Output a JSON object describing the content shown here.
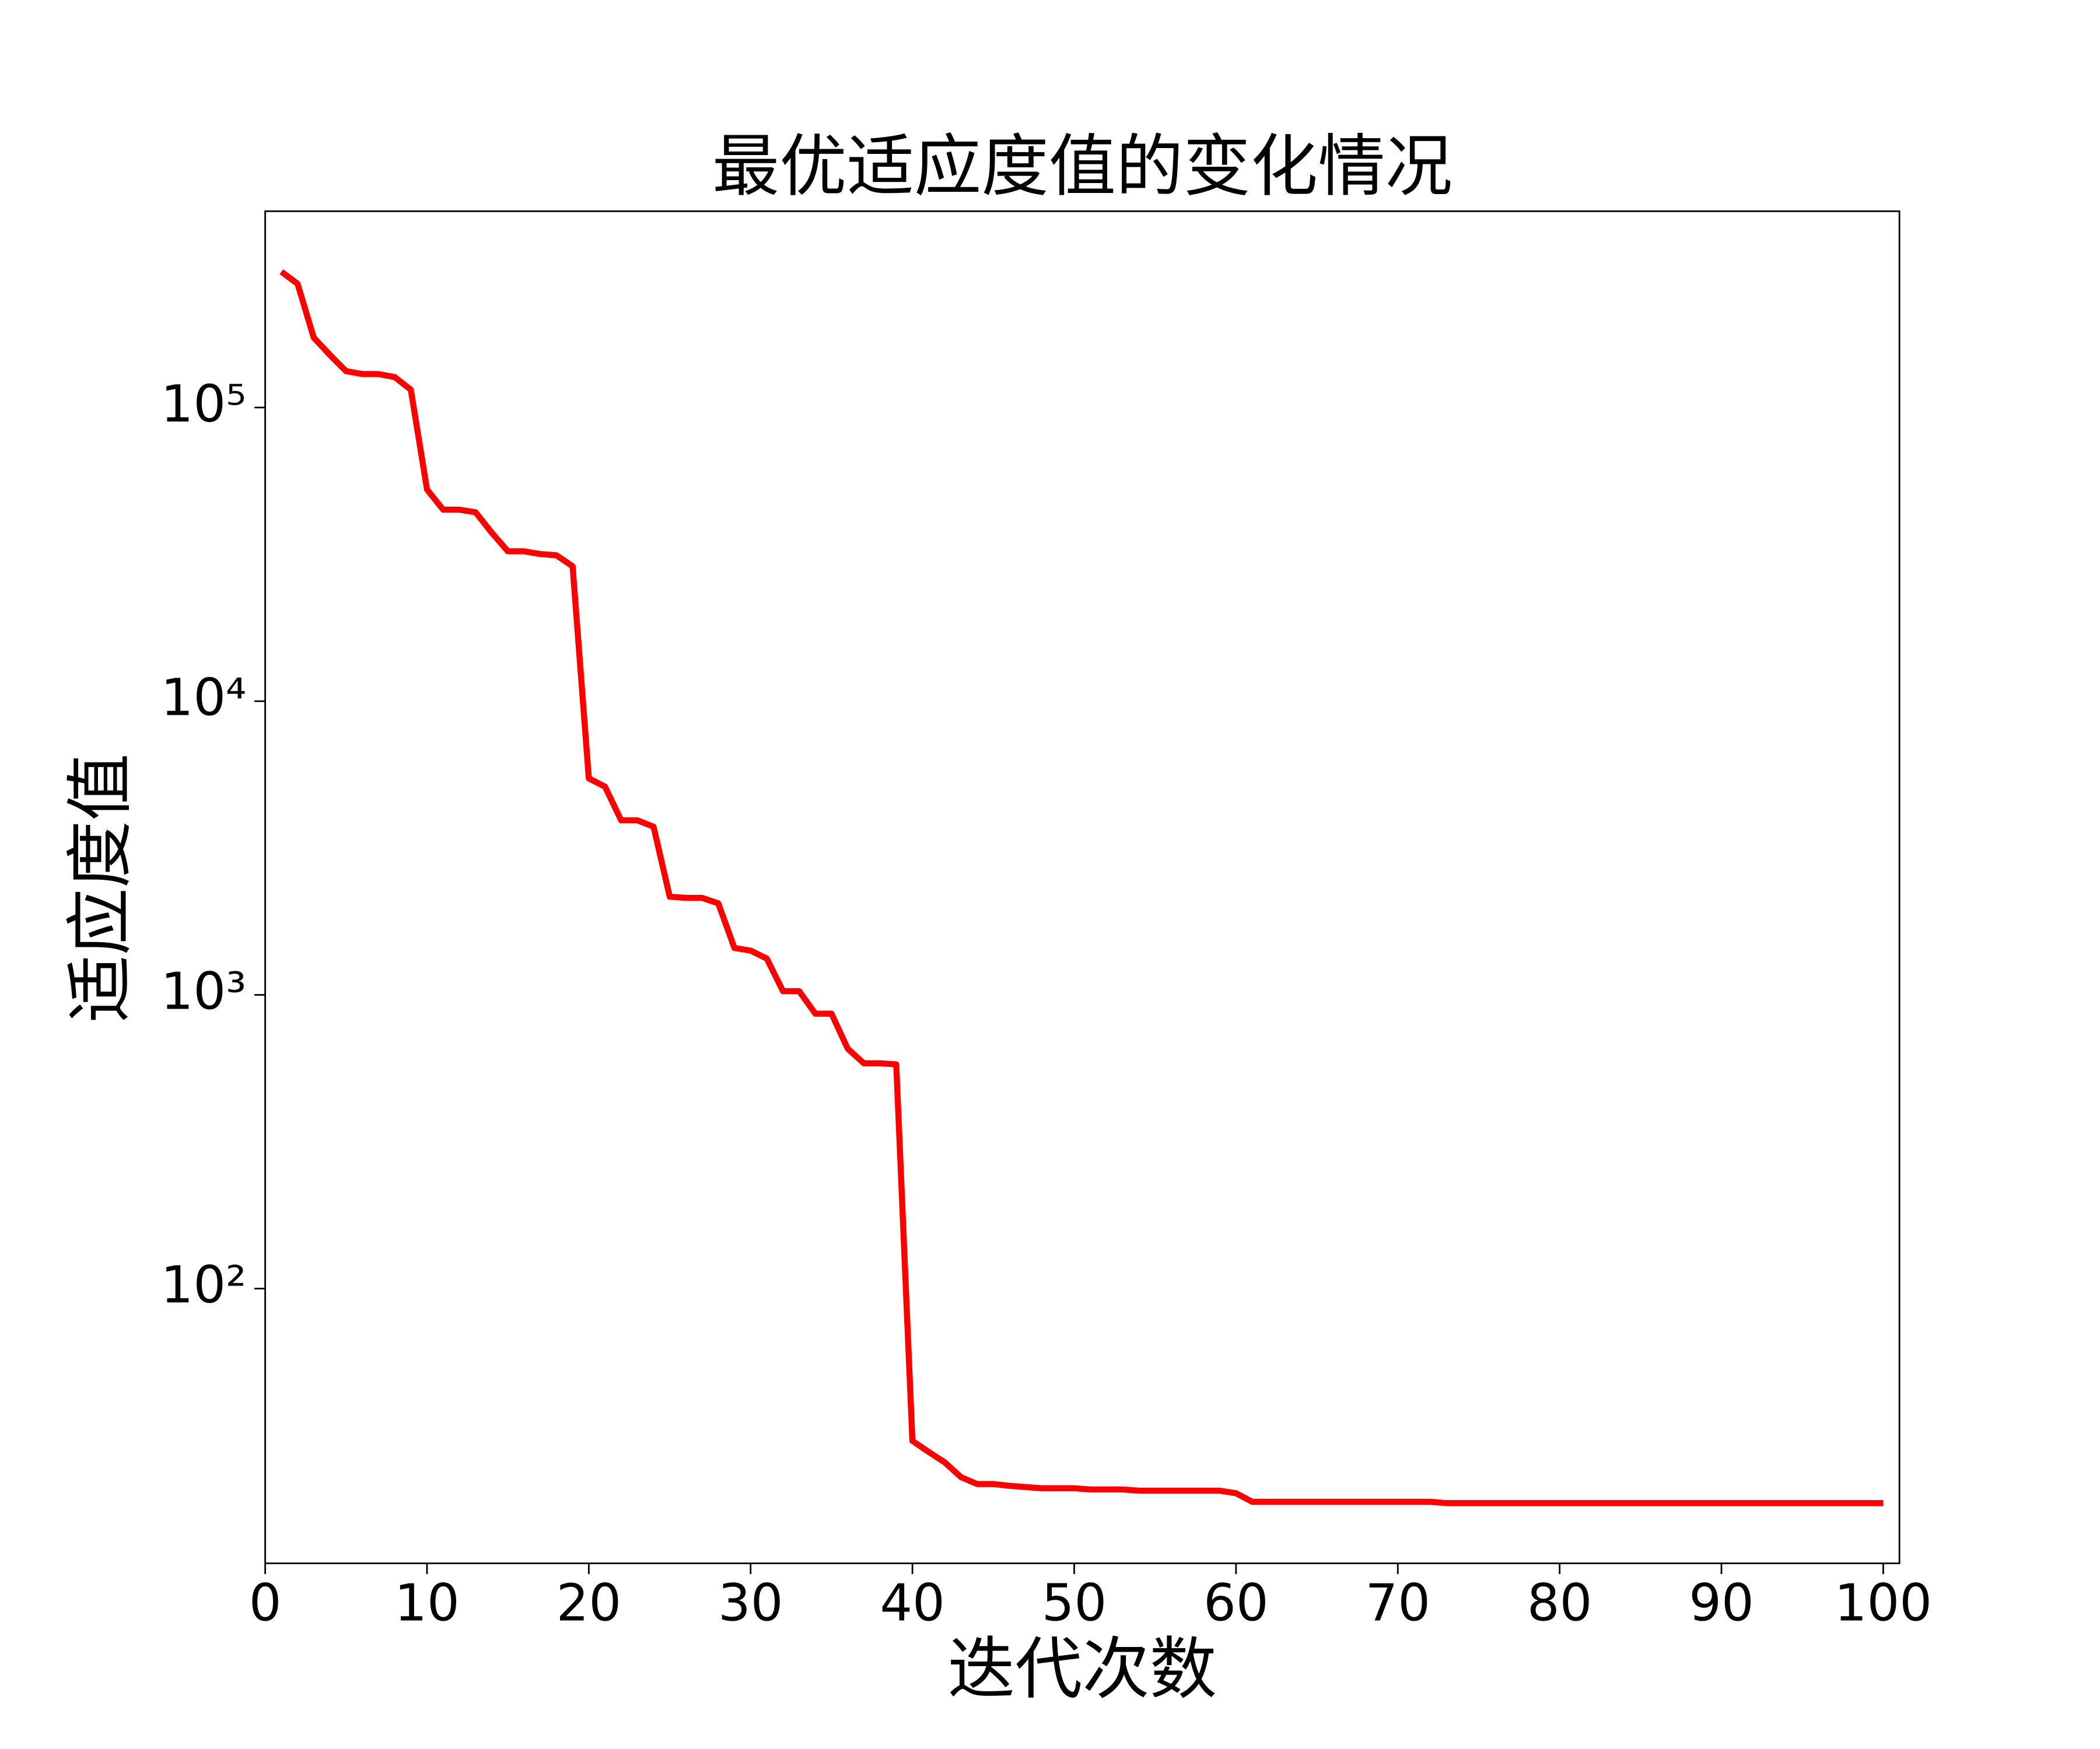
{
  "chart_data": {
    "type": "line",
    "title": "最优适应度值的变化情况",
    "x_label": "迭代次数",
    "y_label": "适应度值",
    "log_y": true,
    "color": "#ff0000",
    "grid": false,
    "x": [
      1,
      2,
      3,
      4,
      5,
      6,
      7,
      8,
      9,
      10,
      11,
      12,
      13,
      14,
      15,
      16,
      17,
      18,
      19,
      20,
      21,
      22,
      23,
      24,
      25,
      26,
      27,
      28,
      29,
      30,
      31,
      32,
      33,
      34,
      35,
      36,
      37,
      38,
      39,
      40,
      41,
      42,
      43,
      44,
      45,
      46,
      47,
      48,
      49,
      50,
      51,
      52,
      53,
      54,
      55,
      56,
      57,
      58,
      59,
      60,
      61,
      62,
      63,
      64,
      65,
      66,
      67,
      68,
      69,
      70,
      71,
      72,
      73,
      74,
      75,
      76,
      77,
      78,
      79,
      80,
      81,
      82,
      83,
      84,
      85,
      86,
      87,
      88,
      89,
      90,
      91,
      92,
      93,
      94,
      95,
      96,
      97,
      98,
      99,
      100
    ],
    "values": [
      290000,
      264000,
      173000,
      151000,
      133000,
      130000,
      130000,
      127000,
      115000,
      52600,
      44900,
      44900,
      44000,
      37500,
      32400,
      32400,
      31700,
      31400,
      28800,
      5460,
      5120,
      3930,
      3930,
      3740,
      2160,
      2140,
      2140,
      2050,
      1445,
      1415,
      1330,
      1030,
      1030,
      863,
      863,
      656,
      585,
      585,
      580,
      30.3,
      27.8,
      25.6,
      22.8,
      21.6,
      21.6,
      21.3,
      21.1,
      20.9,
      20.9,
      20.9,
      20.7,
      20.7,
      20.7,
      20.5,
      20.5,
      20.5,
      20.5,
      20.5,
      20.5,
      20.1,
      18.8,
      18.8,
      18.8,
      18.8,
      18.8,
      18.8,
      18.8,
      18.8,
      18.8,
      18.8,
      18.8,
      18.8,
      18.6,
      18.6,
      18.6,
      18.6,
      18.6,
      18.6,
      18.6,
      18.6,
      18.6,
      18.6,
      18.6,
      18.6,
      18.6,
      18.6,
      18.6,
      18.6,
      18.6,
      18.6,
      18.6,
      18.6,
      18.6,
      18.6,
      18.6,
      18.6,
      18.6,
      18.6,
      18.6,
      18.6
    ],
    "xlim": [
      0,
      101
    ],
    "xticks": [
      0,
      10,
      20,
      30,
      40,
      50,
      60,
      70,
      80,
      90,
      100
    ],
    "ylim": [
      11.6,
      466000
    ],
    "yticks": [
      {
        "value": 100,
        "label": "10²"
      },
      {
        "value": 1000,
        "label": "10³"
      },
      {
        "value": 10000,
        "label": "10⁴"
      },
      {
        "value": 100000,
        "label": "10⁵"
      }
    ]
  }
}
